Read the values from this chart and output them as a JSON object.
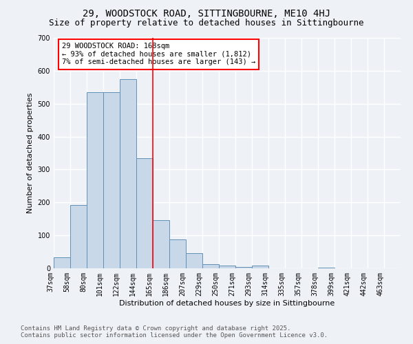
{
  "title_line1": "29, WOODSTOCK ROAD, SITTINGBOURNE, ME10 4HJ",
  "title_line2": "Size of property relative to detached houses in Sittingbourne",
  "xlabel": "Distribution of detached houses by size in Sittingbourne",
  "ylabel": "Number of detached properties",
  "bar_color": "#c8d8e8",
  "bar_edge_color": "#6090b8",
  "vline_color": "red",
  "vline_x_index": 6,
  "categories": [
    "37sqm",
    "58sqm",
    "80sqm",
    "101sqm",
    "122sqm",
    "144sqm",
    "165sqm",
    "186sqm",
    "207sqm",
    "229sqm",
    "250sqm",
    "271sqm",
    "293sqm",
    "314sqm",
    "335sqm",
    "357sqm",
    "378sqm",
    "399sqm",
    "421sqm",
    "442sqm",
    "463sqm"
  ],
  "values": [
    33,
    193,
    535,
    535,
    575,
    335,
    147,
    88,
    46,
    13,
    8,
    5,
    9,
    0,
    0,
    0,
    3,
    0,
    0,
    0,
    0
  ],
  "ylim": [
    0,
    700
  ],
  "yticks": [
    0,
    100,
    200,
    300,
    400,
    500,
    600,
    700
  ],
  "annotation_text": "29 WOODSTOCK ROAD: 168sqm\n← 93% of detached houses are smaller (1,812)\n7% of semi-detached houses are larger (143) →",
  "annotation_box_color": "white",
  "annotation_box_edge_color": "red",
  "footer_line1": "Contains HM Land Registry data © Crown copyright and database right 2025.",
  "footer_line2": "Contains public sector information licensed under the Open Government Licence v3.0.",
  "background_color": "#eef2f7",
  "grid_color": "white",
  "title_fontsize": 10,
  "subtitle_fontsize": 9,
  "axis_label_fontsize": 8,
  "tick_fontsize": 7,
  "annotation_fontsize": 7.5,
  "footer_fontsize": 6.5
}
